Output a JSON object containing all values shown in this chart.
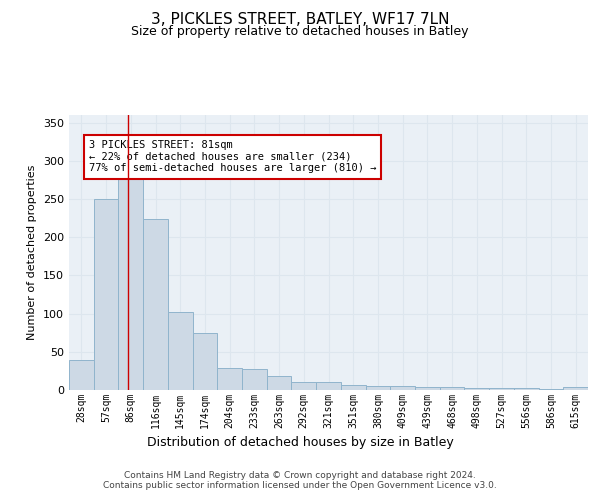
{
  "title1": "3, PICKLES STREET, BATLEY, WF17 7LN",
  "title2": "Size of property relative to detached houses in Batley",
  "xlabel": "Distribution of detached houses by size in Batley",
  "ylabel": "Number of detached properties",
  "categories": [
    "28sqm",
    "57sqm",
    "86sqm",
    "116sqm",
    "145sqm",
    "174sqm",
    "204sqm",
    "233sqm",
    "263sqm",
    "292sqm",
    "321sqm",
    "351sqm",
    "380sqm",
    "409sqm",
    "439sqm",
    "468sqm",
    "498sqm",
    "527sqm",
    "556sqm",
    "586sqm",
    "615sqm"
  ],
  "values": [
    39,
    250,
    290,
    224,
    102,
    75,
    29,
    28,
    18,
    11,
    10,
    6,
    5,
    5,
    4,
    4,
    3,
    2,
    2,
    1,
    4
  ],
  "bar_color": "#cdd9e5",
  "bar_edge_color": "#90b4cc",
  "grid_color": "#dde6ee",
  "plot_bg_color": "#eaf0f6",
  "background_color": "#ffffff",
  "red_line_x": 1.87,
  "annotation_text": "3 PICKLES STREET: 81sqm\n← 22% of detached houses are smaller (234)\n77% of semi-detached houses are larger (810) →",
  "annotation_box_color": "#ffffff",
  "annotation_box_edge_color": "#cc0000",
  "footer_text": "Contains HM Land Registry data © Crown copyright and database right 2024.\nContains public sector information licensed under the Open Government Licence v3.0.",
  "ylim": [
    0,
    360
  ],
  "yticks": [
    0,
    50,
    100,
    150,
    200,
    250,
    300,
    350
  ],
  "title1_fontsize": 11,
  "title2_fontsize": 9,
  "ylabel_fontsize": 8,
  "xlabel_fontsize": 9,
  "tick_fontsize": 7,
  "footer_fontsize": 6.5,
  "annot_fontsize": 7.5
}
